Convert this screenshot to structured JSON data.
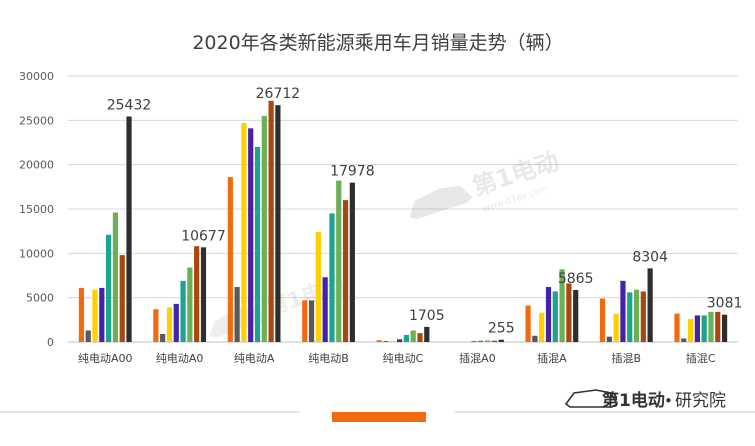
{
  "chart_data": {
    "type": "bar",
    "title": "2020年各类新能源乘用车月销量走势（辆）",
    "xlabel": "",
    "ylabel": "",
    "ylim": [
      0,
      30000
    ],
    "yticks": [
      "0",
      "5000",
      "10000",
      "15000",
      "20000",
      "25000",
      "30000"
    ],
    "grid": true,
    "legend": "none",
    "categories": [
      "纯电动A00",
      "纯电动A0",
      "纯电动A",
      "纯电动B",
      "纯电动C",
      "插混A0",
      "插混A",
      "插混B",
      "插混C"
    ],
    "series": [
      {
        "color": "#F26A0F",
        "values": [
          6100,
          3700,
          18600,
          4700,
          200,
          0,
          4100,
          4900,
          3200
        ]
      },
      {
        "color": "#595959",
        "values": [
          1300,
          900,
          6200,
          4700,
          100,
          0,
          700,
          600,
          400
        ]
      },
      {
        "color": "#FFD000",
        "values": [
          5900,
          3900,
          24700,
          12400,
          100,
          50,
          3300,
          3200,
          2600
        ]
      },
      {
        "color": "#4422AA",
        "values": [
          6100,
          4300,
          24100,
          7300,
          300,
          80,
          6200,
          6900,
          3000
        ]
      },
      {
        "color": "#1AA58C",
        "values": [
          12100,
          6900,
          22000,
          14500,
          800,
          150,
          5700,
          5600,
          3000
        ]
      },
      {
        "color": "#6BAF56",
        "values": [
          14600,
          8400,
          25500,
          18200,
          1300,
          180,
          8200,
          5900,
          3400
        ]
      },
      {
        "color": "#A8470F",
        "values": [
          9800,
          10800,
          27200,
          16000,
          1000,
          150,
          6600,
          5700,
          3400
        ]
      },
      {
        "color": "#2E2E2E",
        "values": [
          25432,
          10677,
          26712,
          17978,
          1705,
          255,
          5865,
          8304,
          3081
        ]
      }
    ],
    "data_labels": [
      "25432",
      "10677",
      "26712",
      "17978",
      "1705",
      "255",
      "5865",
      "8304",
      "3081"
    ]
  },
  "footer": {
    "watermark_main": "第1电动",
    "watermark_sub": "www.d1ev.com",
    "brand": "第1电动",
    "brand_separator": "•",
    "brand_suffix": "研究院"
  },
  "colors": {
    "accent": "#F26A0F",
    "grid": "#d9d9d9",
    "text": "#404040"
  }
}
